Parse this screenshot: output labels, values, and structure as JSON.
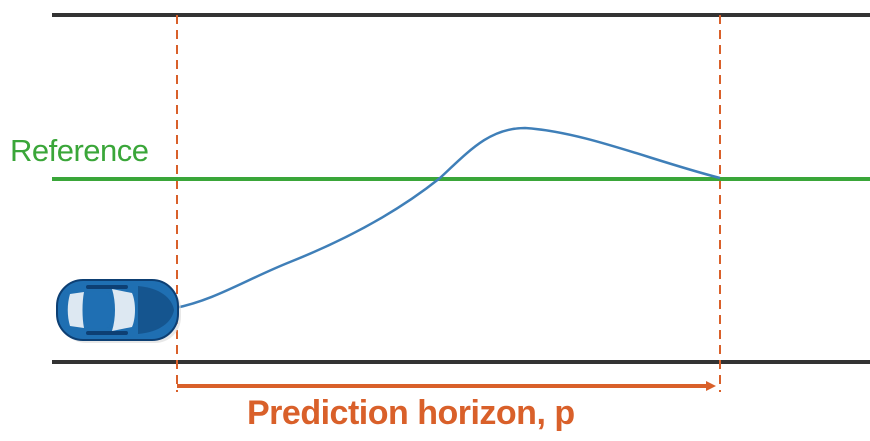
{
  "labels": {
    "reference": "Reference",
    "prediction_horizon": "Prediction horizon, p"
  },
  "colors": {
    "road_edge": "#333333",
    "reference": "#3aa639",
    "trajectory": "#3f7fb8",
    "horizon": "#d9602a",
    "car_body": "#1f6fb2",
    "car_dark": "#0d3f73",
    "car_window": "#dde8f2"
  },
  "icons": {
    "vehicle": "car-top-view-icon"
  }
}
